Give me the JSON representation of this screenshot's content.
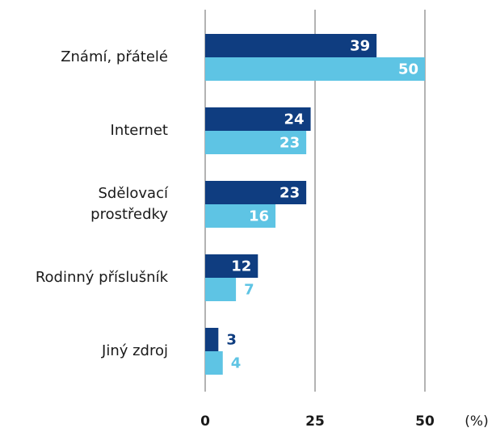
{
  "chart_data": {
    "type": "hbar",
    "categories": [
      "Známí, přátelé",
      "Internet",
      "Sdělovací\nprostředky",
      "Rodinný příslušník",
      "Jiný zdroj"
    ],
    "series": [
      {
        "color": "#0f3d80",
        "values": [
          39,
          24,
          23,
          12,
          3
        ]
      },
      {
        "color": "#5ec4e4",
        "values": [
          50,
          23,
          16,
          7,
          4
        ]
      }
    ],
    "xlim": [
      0,
      50
    ],
    "xticks": [
      0,
      25,
      50
    ],
    "x_label": "(%)",
    "grid": true
  }
}
